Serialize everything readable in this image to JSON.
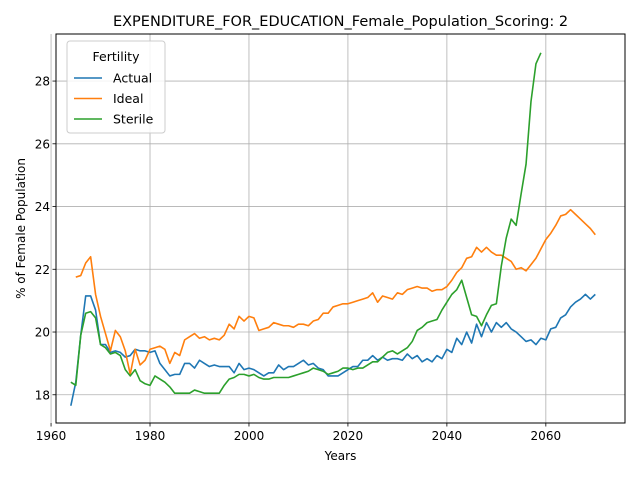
{
  "chart_data": {
    "type": "line",
    "title": "EXPENDITURE_FOR_EDUCATION_Female_Population_Scoring: 2",
    "xlabel": "Years",
    "ylabel": "% of Female Population",
    "xlim": [
      1961,
      2076
    ],
    "ylim": [
      17.1,
      29.5
    ],
    "xticks": [
      1960,
      1980,
      2000,
      2020,
      2040,
      2060
    ],
    "yticks": [
      18,
      20,
      22,
      24,
      26,
      28
    ],
    "grid": true,
    "legend": {
      "title": "Fertility",
      "placement": "top-left"
    },
    "series": [
      {
        "name": "Actual",
        "color": "#1f77b4",
        "points": [
          [
            1964,
            17.65
          ],
          [
            1965,
            18.4
          ],
          [
            1966,
            19.9
          ],
          [
            1967,
            21.15
          ],
          [
            1968,
            21.15
          ],
          [
            1969,
            20.7
          ],
          [
            1970,
            19.6
          ],
          [
            1971,
            19.6
          ],
          [
            1972,
            19.35
          ],
          [
            1973,
            19.4
          ],
          [
            1974,
            19.35
          ],
          [
            1975,
            19.2
          ],
          [
            1976,
            19.25
          ],
          [
            1977,
            19.45
          ],
          [
            1978,
            19.4
          ],
          [
            1979,
            19.4
          ],
          [
            1980,
            19.35
          ],
          [
            1981,
            19.4
          ],
          [
            1982,
            19.0
          ],
          [
            1983,
            18.8
          ],
          [
            1984,
            18.6
          ],
          [
            1985,
            18.65
          ],
          [
            1986,
            18.65
          ],
          [
            1987,
            19.0
          ],
          [
            1988,
            19.0
          ],
          [
            1989,
            18.85
          ],
          [
            1990,
            19.1
          ],
          [
            1991,
            19.0
          ],
          [
            1992,
            18.9
          ],
          [
            1993,
            18.95
          ],
          [
            1994,
            18.9
          ],
          [
            1995,
            18.9
          ],
          [
            1996,
            18.9
          ],
          [
            1997,
            18.7
          ],
          [
            1998,
            19.0
          ],
          [
            1999,
            18.8
          ],
          [
            2000,
            18.85
          ],
          [
            2001,
            18.8
          ],
          [
            2002,
            18.7
          ],
          [
            2003,
            18.6
          ],
          [
            2004,
            18.7
          ],
          [
            2005,
            18.7
          ],
          [
            2006,
            18.95
          ],
          [
            2007,
            18.8
          ],
          [
            2008,
            18.9
          ],
          [
            2009,
            18.9
          ],
          [
            2010,
            19.0
          ],
          [
            2011,
            19.1
          ],
          [
            2012,
            18.95
          ],
          [
            2013,
            19.0
          ],
          [
            2014,
            18.85
          ],
          [
            2015,
            18.8
          ],
          [
            2016,
            18.6
          ],
          [
            2017,
            18.6
          ],
          [
            2018,
            18.6
          ],
          [
            2019,
            18.7
          ],
          [
            2020,
            18.8
          ],
          [
            2021,
            18.9
          ],
          [
            2022,
            18.9
          ],
          [
            2023,
            19.1
          ],
          [
            2024,
            19.1
          ],
          [
            2025,
            19.25
          ],
          [
            2026,
            19.1
          ],
          [
            2027,
            19.2
          ],
          [
            2028,
            19.1
          ],
          [
            2029,
            19.15
          ],
          [
            2030,
            19.15
          ],
          [
            2031,
            19.1
          ],
          [
            2032,
            19.3
          ],
          [
            2033,
            19.15
          ],
          [
            2034,
            19.25
          ],
          [
            2035,
            19.05
          ],
          [
            2036,
            19.15
          ],
          [
            2037,
            19.05
          ],
          [
            2038,
            19.25
          ],
          [
            2039,
            19.15
          ],
          [
            2040,
            19.45
          ],
          [
            2041,
            19.35
          ],
          [
            2042,
            19.8
          ],
          [
            2043,
            19.6
          ],
          [
            2044,
            20.0
          ],
          [
            2045,
            19.65
          ],
          [
            2046,
            20.25
          ],
          [
            2047,
            19.85
          ],
          [
            2048,
            20.3
          ],
          [
            2049,
            20.0
          ],
          [
            2050,
            20.3
          ],
          [
            2051,
            20.15
          ],
          [
            2052,
            20.3
          ],
          [
            2053,
            20.1
          ],
          [
            2054,
            20.0
          ],
          [
            2055,
            19.85
          ],
          [
            2056,
            19.7
          ],
          [
            2057,
            19.75
          ],
          [
            2058,
            19.6
          ],
          [
            2059,
            19.8
          ],
          [
            2060,
            19.75
          ],
          [
            2061,
            20.1
          ],
          [
            2062,
            20.15
          ],
          [
            2063,
            20.45
          ],
          [
            2064,
            20.55
          ],
          [
            2065,
            20.8
          ],
          [
            2066,
            20.95
          ],
          [
            2067,
            21.05
          ],
          [
            2068,
            21.2
          ],
          [
            2069,
            21.05
          ],
          [
            2070,
            21.2
          ]
        ]
      },
      {
        "name": "Ideal",
        "color": "#ff7f0e",
        "points": [
          [
            1965,
            21.75
          ],
          [
            1966,
            21.8
          ],
          [
            1967,
            22.2
          ],
          [
            1968,
            22.4
          ],
          [
            1969,
            21.2
          ],
          [
            1970,
            20.5
          ],
          [
            1971,
            19.95
          ],
          [
            1972,
            19.4
          ],
          [
            1973,
            20.05
          ],
          [
            1974,
            19.85
          ],
          [
            1975,
            19.4
          ],
          [
            1976,
            18.65
          ],
          [
            1977,
            19.45
          ],
          [
            1978,
            18.95
          ],
          [
            1979,
            19.1
          ],
          [
            1980,
            19.45
          ],
          [
            1981,
            19.5
          ],
          [
            1982,
            19.55
          ],
          [
            1983,
            19.45
          ],
          [
            1984,
            19.0
          ],
          [
            1985,
            19.35
          ],
          [
            1986,
            19.25
          ],
          [
            1987,
            19.75
          ],
          [
            1988,
            19.85
          ],
          [
            1989,
            19.95
          ],
          [
            1990,
            19.8
          ],
          [
            1991,
            19.85
          ],
          [
            1992,
            19.75
          ],
          [
            1993,
            19.8
          ],
          [
            1994,
            19.75
          ],
          [
            1995,
            19.9
          ],
          [
            1996,
            20.25
          ],
          [
            1997,
            20.1
          ],
          [
            1998,
            20.5
          ],
          [
            1999,
            20.35
          ],
          [
            2000,
            20.5
          ],
          [
            2001,
            20.45
          ],
          [
            2002,
            20.05
          ],
          [
            2003,
            20.1
          ],
          [
            2004,
            20.15
          ],
          [
            2005,
            20.3
          ],
          [
            2006,
            20.25
          ],
          [
            2007,
            20.2
          ],
          [
            2008,
            20.2
          ],
          [
            2009,
            20.15
          ],
          [
            2010,
            20.25
          ],
          [
            2011,
            20.25
          ],
          [
            2012,
            20.2
          ],
          [
            2013,
            20.35
          ],
          [
            2014,
            20.4
          ],
          [
            2015,
            20.6
          ],
          [
            2016,
            20.6
          ],
          [
            2017,
            20.8
          ],
          [
            2018,
            20.85
          ],
          [
            2019,
            20.9
          ],
          [
            2020,
            20.9
          ],
          [
            2021,
            20.95
          ],
          [
            2022,
            21.0
          ],
          [
            2023,
            21.05
          ],
          [
            2024,
            21.1
          ],
          [
            2025,
            21.25
          ],
          [
            2026,
            20.95
          ],
          [
            2027,
            21.15
          ],
          [
            2028,
            21.1
          ],
          [
            2029,
            21.05
          ],
          [
            2030,
            21.25
          ],
          [
            2031,
            21.2
          ],
          [
            2032,
            21.35
          ],
          [
            2033,
            21.4
          ],
          [
            2034,
            21.45
          ],
          [
            2035,
            21.4
          ],
          [
            2036,
            21.4
          ],
          [
            2037,
            21.3
          ],
          [
            2038,
            21.35
          ],
          [
            2039,
            21.35
          ],
          [
            2040,
            21.45
          ],
          [
            2041,
            21.65
          ],
          [
            2042,
            21.9
          ],
          [
            2043,
            22.05
          ],
          [
            2044,
            22.35
          ],
          [
            2045,
            22.4
          ],
          [
            2046,
            22.7
          ],
          [
            2047,
            22.55
          ],
          [
            2048,
            22.7
          ],
          [
            2049,
            22.55
          ],
          [
            2050,
            22.45
          ],
          [
            2051,
            22.45
          ],
          [
            2052,
            22.35
          ],
          [
            2053,
            22.25
          ],
          [
            2054,
            22.0
          ],
          [
            2055,
            22.05
          ],
          [
            2056,
            21.95
          ],
          [
            2057,
            22.15
          ],
          [
            2058,
            22.35
          ],
          [
            2059,
            22.65
          ],
          [
            2060,
            22.95
          ],
          [
            2061,
            23.15
          ],
          [
            2062,
            23.4
          ],
          [
            2063,
            23.7
          ],
          [
            2064,
            23.75
          ],
          [
            2065,
            23.9
          ],
          [
            2066,
            23.75
          ],
          [
            2067,
            23.6
          ],
          [
            2068,
            23.45
          ],
          [
            2069,
            23.3
          ],
          [
            2070,
            23.1
          ]
        ]
      },
      {
        "name": "Sterile",
        "color": "#2ca02c",
        "points": [
          [
            1964,
            18.4
          ],
          [
            1965,
            18.3
          ],
          [
            1966,
            19.9
          ],
          [
            1967,
            20.6
          ],
          [
            1968,
            20.65
          ],
          [
            1969,
            20.45
          ],
          [
            1970,
            19.6
          ],
          [
            1971,
            19.5
          ],
          [
            1972,
            19.3
          ],
          [
            1973,
            19.35
          ],
          [
            1974,
            19.25
          ],
          [
            1975,
            18.8
          ],
          [
            1976,
            18.6
          ],
          [
            1977,
            18.8
          ],
          [
            1978,
            18.45
          ],
          [
            1979,
            18.35
          ],
          [
            1980,
            18.3
          ],
          [
            1981,
            18.6
          ],
          [
            1982,
            18.5
          ],
          [
            1983,
            18.4
          ],
          [
            1984,
            18.25
          ],
          [
            1985,
            18.05
          ],
          [
            1986,
            18.05
          ],
          [
            1987,
            18.05
          ],
          [
            1988,
            18.05
          ],
          [
            1989,
            18.15
          ],
          [
            1990,
            18.1
          ],
          [
            1991,
            18.05
          ],
          [
            1992,
            18.05
          ],
          [
            1993,
            18.05
          ],
          [
            1994,
            18.05
          ],
          [
            1995,
            18.3
          ],
          [
            1996,
            18.5
          ],
          [
            1997,
            18.55
          ],
          [
            1998,
            18.65
          ],
          [
            1999,
            18.65
          ],
          [
            2000,
            18.6
          ],
          [
            2001,
            18.65
          ],
          [
            2002,
            18.55
          ],
          [
            2003,
            18.5
          ],
          [
            2004,
            18.5
          ],
          [
            2005,
            18.55
          ],
          [
            2006,
            18.55
          ],
          [
            2007,
            18.55
          ],
          [
            2008,
            18.55
          ],
          [
            2009,
            18.6
          ],
          [
            2010,
            18.65
          ],
          [
            2011,
            18.7
          ],
          [
            2012,
            18.75
          ],
          [
            2013,
            18.85
          ],
          [
            2014,
            18.8
          ],
          [
            2015,
            18.75
          ],
          [
            2016,
            18.65
          ],
          [
            2017,
            18.7
          ],
          [
            2018,
            18.75
          ],
          [
            2019,
            18.85
          ],
          [
            2020,
            18.85
          ],
          [
            2021,
            18.8
          ],
          [
            2022,
            18.85
          ],
          [
            2023,
            18.85
          ],
          [
            2024,
            18.95
          ],
          [
            2025,
            19.05
          ],
          [
            2026,
            19.05
          ],
          [
            2027,
            19.2
          ],
          [
            2028,
            19.35
          ],
          [
            2029,
            19.4
          ],
          [
            2030,
            19.3
          ],
          [
            2031,
            19.4
          ],
          [
            2032,
            19.5
          ],
          [
            2033,
            19.7
          ],
          [
            2034,
            20.05
          ],
          [
            2035,
            20.15
          ],
          [
            2036,
            20.3
          ],
          [
            2037,
            20.35
          ],
          [
            2038,
            20.4
          ],
          [
            2039,
            20.7
          ],
          [
            2040,
            20.95
          ],
          [
            2041,
            21.2
          ],
          [
            2042,
            21.35
          ],
          [
            2043,
            21.65
          ],
          [
            2044,
            21.1
          ],
          [
            2045,
            20.55
          ],
          [
            2046,
            20.5
          ],
          [
            2047,
            20.2
          ],
          [
            2048,
            20.55
          ],
          [
            2049,
            20.85
          ],
          [
            2050,
            20.9
          ],
          [
            2051,
            22.1
          ],
          [
            2052,
            23.0
          ],
          [
            2053,
            23.6
          ],
          [
            2054,
            23.4
          ],
          [
            2055,
            24.4
          ],
          [
            2056,
            25.35
          ],
          [
            2057,
            27.35
          ],
          [
            2058,
            28.55
          ],
          [
            2059,
            28.9
          ]
        ]
      }
    ]
  }
}
